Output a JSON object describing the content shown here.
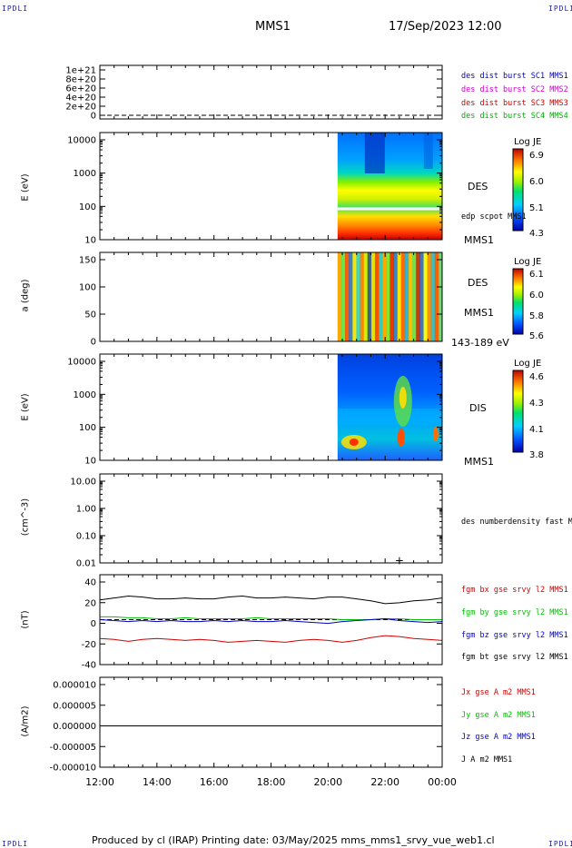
{
  "corners": {
    "tl": "IPDLI",
    "tr": "IPDLI",
    "bl": "IPDLI",
    "br": "IPDLI"
  },
  "header": {
    "title": "MMS1",
    "date": "17/Sep/2023 12:00"
  },
  "footer": {
    "text": "Produced by cl (IRAP)   Printing date: 03/May/2025   mms_mms1_srvy_vue_web1.cl"
  },
  "colors": {
    "mms1": "#0000c8",
    "mms2": "#d000d0",
    "mms3": "#d00000",
    "mms4": "#00b000",
    "bx": "#d00000",
    "by": "#00c000",
    "bz": "#0000c8",
    "bt": "#000000"
  },
  "chart_data": [
    {
      "id": "dist-burst",
      "type": "line",
      "yticks": [
        "1e+21",
        "8e+20",
        "6e+20",
        "4e+20",
        "2e+20",
        "0"
      ],
      "ylim": [
        0,
        1.1e+21
      ],
      "legend": [
        "des dist burst SC1 MMS1",
        "des dist burst SC2 MMS2",
        "des dist burst SC3 MMS3",
        "des dist burst SC4 MMS4"
      ],
      "series": [
        {
          "name": "des dist burst SC1 MMS1",
          "values": [
            0,
            0,
            0,
            0,
            0,
            0,
            0,
            0,
            0,
            0,
            0,
            0,
            0
          ]
        }
      ]
    },
    {
      "id": "des-energy",
      "type": "heatmap",
      "ylabel": "E (eV)",
      "yticks": [
        "10000",
        "1000",
        "100",
        "10"
      ],
      "ylim": [
        10,
        20000
      ],
      "scale": "log",
      "tag_top": "DES",
      "tag_mid": "edp scpot MMS1",
      "tag_bottom": "MMS1",
      "colorbar": {
        "title": "Log JE",
        "ticks": [
          "6.9",
          "6.0",
          "5.1",
          "4.3"
        ],
        "range": [
          4.3,
          6.9
        ]
      },
      "data_start": "20:20",
      "data_end": "00:00"
    },
    {
      "id": "des-pitch",
      "type": "heatmap",
      "ylabel": "a (deg)",
      "yticks": [
        "150",
        "100",
        "50",
        "0"
      ],
      "ylim": [
        0,
        180
      ],
      "tag_top": "DES",
      "tag_mid": "MMS1",
      "tag_bottom": "143-189 eV",
      "colorbar": {
        "title": "Log JE",
        "ticks": [
          "6.1",
          "6.0",
          "5.8",
          "5.6"
        ],
        "range": [
          5.6,
          6.1
        ]
      },
      "data_start": "20:20",
      "data_end": "00:00"
    },
    {
      "id": "dis-energy",
      "type": "heatmap",
      "ylabel": "E (eV)",
      "yticks": [
        "10000",
        "1000",
        "100",
        "10"
      ],
      "ylim": [
        10,
        20000
      ],
      "scale": "log",
      "tag_top": "DIS",
      "tag_bottom": "MMS1",
      "colorbar": {
        "title": "Log JE",
        "ticks": [
          "4.6",
          "4.3",
          "4.1",
          "3.8"
        ],
        "range": [
          3.8,
          4.6
        ]
      },
      "data_start": "20:20",
      "data_end": "00:00"
    },
    {
      "id": "density",
      "type": "scatter",
      "ylabel": "(cm^-3)",
      "yticks": [
        "10.00",
        "1.00",
        "0.10",
        "0.01"
      ],
      "ylim": [
        0.01,
        10
      ],
      "scale": "log",
      "legend": [
        "des numberdensity fast M"
      ],
      "points": [
        {
          "x": "22:30",
          "y": 0.012
        }
      ]
    },
    {
      "id": "bfield",
      "type": "line",
      "ylabel": "(nT)",
      "yticks": [
        "40",
        "20",
        "0",
        "-20",
        "-40"
      ],
      "ylim": [
        -50,
        50
      ],
      "legend": [
        "fgm bx gse srvy l2 MMS1",
        "fgm by gse srvy l2 MMS1",
        "fgm bz gse srvy l2 MMS1",
        "fgm bt gse srvy l2 MMS1"
      ],
      "x": [
        "12:00",
        "12:30",
        "13:00",
        "13:30",
        "14:00",
        "14:30",
        "15:00",
        "15:30",
        "16:00",
        "16:30",
        "17:00",
        "17:30",
        "18:00",
        "18:30",
        "19:00",
        "19:30",
        "20:00",
        "20:30",
        "21:00",
        "21:30",
        "22:00",
        "22:30",
        "23:00",
        "23:30",
        "00:00"
      ],
      "series": [
        {
          "name": "fgm bx gse srvy l2 MMS1",
          "values": [
            -20,
            -21,
            -23,
            -21,
            -20,
            -21,
            -22,
            -21,
            -22,
            -24,
            -23,
            -22,
            -23,
            -24,
            -22,
            -21,
            -22,
            -24,
            -22,
            -19,
            -17,
            -18,
            -20,
            -21,
            -22
          ]
        },
        {
          "name": "fgm by gse srvy l2 MMS1",
          "values": [
            3,
            3,
            2,
            2,
            1,
            1,
            2,
            1,
            1,
            1,
            1,
            2,
            1,
            1,
            1,
            1,
            1,
            0,
            0,
            0,
            1,
            1,
            0,
            0,
            0
          ]
        },
        {
          "name": "fgm bz gse srvy l2 MMS1",
          "values": [
            0,
            -1,
            -2,
            -1,
            -2,
            -1,
            -2,
            -2,
            -1,
            -2,
            -1,
            -2,
            -2,
            -1,
            -2,
            -3,
            -4,
            -2,
            -1,
            0,
            1,
            -1,
            -2,
            -3,
            -2
          ]
        },
        {
          "name": "fgm bt gse srvy l2 MMS1",
          "values": [
            21,
            23,
            25,
            24,
            22,
            22,
            23,
            22,
            22,
            24,
            25,
            23,
            23,
            24,
            23,
            22,
            24,
            24,
            22,
            20,
            17,
            18,
            20,
            21,
            23
          ]
        }
      ]
    },
    {
      "id": "current",
      "type": "line",
      "ylabel": "(A/m2)",
      "yticks": [
        "0.000010",
        "0.000005",
        "0.000000",
        "-0.000005",
        "-0.000010"
      ],
      "ylim": [
        -1e-05,
        1e-05
      ],
      "legend": [
        "Jx gse A m2 MMS1",
        "Jy gse A m2 MMS1",
        "Jz gse A m2 MMS1",
        "J A m2 MMS1"
      ],
      "series": [
        {
          "name": "J A m2 MMS1",
          "values": [
            0,
            0,
            0,
            0,
            0,
            0,
            0,
            0,
            0,
            0,
            0,
            0,
            0
          ]
        }
      ]
    }
  ],
  "xaxis": {
    "ticks": [
      "12:00",
      "14:00",
      "16:00",
      "18:00",
      "20:00",
      "22:00",
      "00:00"
    ]
  }
}
